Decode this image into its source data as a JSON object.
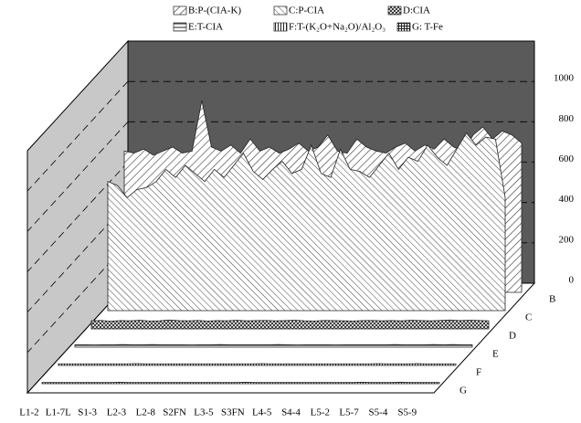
{
  "chart_data": {
    "type": "area3d",
    "series": [
      {
        "name": "B:P-(CIA-K)",
        "values": [
          700,
          690,
          710,
          680,
          700,
          720,
          690,
          700,
          950,
          720,
          700,
          730,
          690,
          760,
          700,
          720,
          690,
          710,
          740,
          700,
          720,
          780,
          700,
          690,
          760,
          720,
          700,
          690,
          720,
          740,
          700,
          730,
          710,
          760,
          720,
          700,
          780,
          820,
          760,
          800,
          780,
          740
        ]
      },
      {
        "name": "C:P-CIA",
        "values": [
          640,
          620,
          560,
          600,
          610,
          640,
          700,
          660,
          720,
          680,
          640,
          700,
          660,
          720,
          780,
          690,
          650,
          700,
          740,
          680,
          700,
          820,
          680,
          660,
          800,
          700,
          690,
          660,
          720,
          780,
          700,
          760,
          740,
          820,
          760,
          720,
          800,
          880,
          820,
          860,
          850,
          560
        ]
      },
      {
        "name": "D:CIA",
        "values": [
          40,
          42,
          38,
          41,
          40,
          43,
          39,
          40,
          44,
          41,
          40,
          42,
          39,
          41,
          40,
          43,
          40,
          41,
          42,
          40,
          41,
          43,
          40,
          39,
          42,
          41,
          40,
          39,
          41,
          42,
          40,
          41,
          40,
          43,
          41,
          40,
          42,
          44,
          41,
          43,
          42,
          40
        ]
      },
      {
        "name": "E:T-CIA",
        "values": [
          12,
          12,
          11,
          12,
          12,
          13,
          12,
          12,
          13,
          12,
          12,
          12,
          11,
          12,
          12,
          13,
          12,
          12,
          12,
          12,
          12,
          13,
          12,
          11,
          12,
          12,
          12,
          11,
          12,
          12,
          12,
          12,
          12,
          13,
          12,
          12,
          12,
          13,
          12,
          13,
          12,
          12
        ]
      },
      {
        "name": "F:T-(K₂O+Na₂O)/Al₂O₃",
        "values": [
          8,
          8,
          8,
          8,
          8,
          8,
          8,
          8,
          9,
          8,
          8,
          8,
          8,
          8,
          8,
          8,
          8,
          8,
          8,
          8,
          8,
          9,
          8,
          8,
          8,
          8,
          8,
          8,
          8,
          8,
          8,
          8,
          8,
          9,
          8,
          8,
          8,
          9,
          8,
          8,
          8,
          8
        ]
      },
      {
        "name": "G: T-Fe",
        "values": [
          6,
          6,
          6,
          6,
          6,
          6,
          6,
          6,
          7,
          6,
          6,
          6,
          6,
          6,
          6,
          6,
          6,
          6,
          6,
          6,
          6,
          7,
          6,
          6,
          6,
          6,
          6,
          6,
          6,
          6,
          6,
          6,
          6,
          7,
          6,
          6,
          6,
          7,
          6,
          6,
          6,
          6
        ]
      }
    ],
    "categories": [
      "L1-2",
      null,
      null,
      "L1-7L",
      null,
      null,
      "S1-3",
      null,
      null,
      "L2-3",
      null,
      null,
      "L2-8",
      null,
      null,
      "S2FN",
      null,
      null,
      "L3-5",
      null,
      null,
      "S3FN",
      null,
      null,
      "L4-5",
      null,
      null,
      "S4-4",
      null,
      null,
      "L5-2",
      null,
      null,
      "L5-7",
      null,
      null,
      "S5-4",
      null,
      null,
      "S5-9",
      null,
      null
    ],
    "depth_labels": [
      "B",
      "C",
      "D",
      "E",
      "F",
      "G"
    ],
    "ylim": [
      0,
      1200
    ],
    "yticks": [
      0,
      200,
      400,
      600,
      800,
      1000
    ],
    "grid": true
  }
}
